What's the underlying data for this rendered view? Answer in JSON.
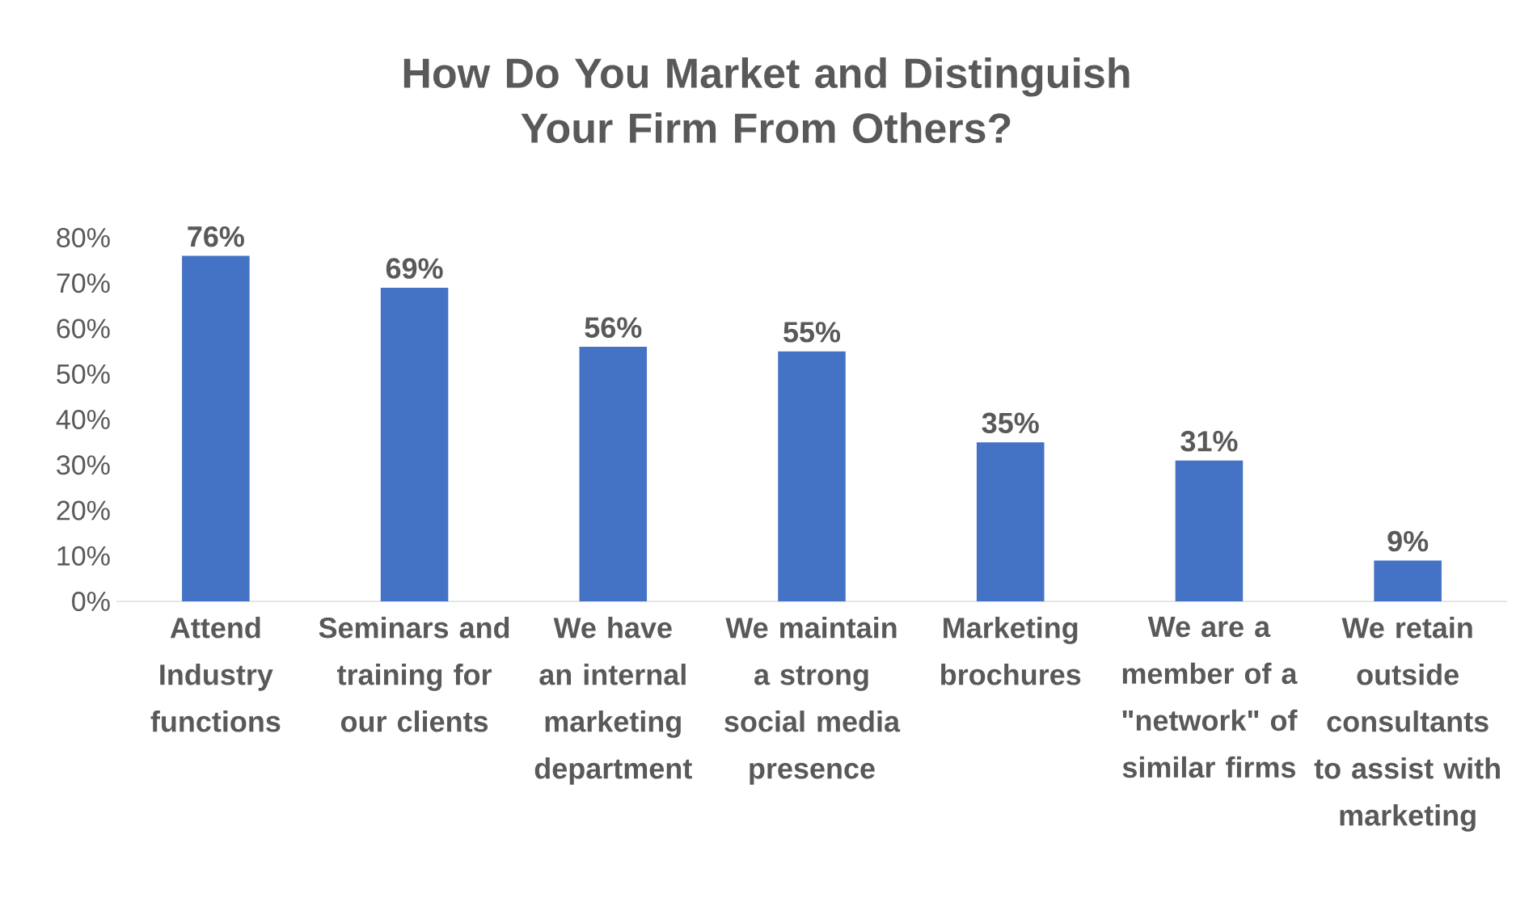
{
  "chart_data": {
    "type": "bar",
    "title": "How Do You Market and Distinguish Your Firm From Others?",
    "categories": [
      "Attend Industry functions",
      "Seminars and training for our clients",
      "We have an internal marketing department",
      "We maintain a strong social media presence",
      "Marketing brochures",
      "We are a member of a \"network\" of similar firms",
      "We retain outside consultants to assist with marketing"
    ],
    "values": [
      76,
      69,
      56,
      55,
      35,
      31,
      9
    ],
    "value_labels": [
      "76%",
      "69%",
      "56%",
      "55%",
      "35%",
      "31%",
      "9%"
    ],
    "color": "#4472c4",
    "ylim": [
      0,
      80
    ],
    "yticks": [
      {
        "value": 0,
        "label": "0%"
      },
      {
        "value": 10,
        "label": "10%"
      },
      {
        "value": 20,
        "label": "20%"
      },
      {
        "value": 30,
        "label": "30%"
      },
      {
        "value": 40,
        "label": "40%"
      },
      {
        "value": 50,
        "label": "50%"
      },
      {
        "value": 60,
        "label": "60%"
      },
      {
        "value": 70,
        "label": "70%"
      },
      {
        "value": 80,
        "label": "80%"
      }
    ]
  }
}
